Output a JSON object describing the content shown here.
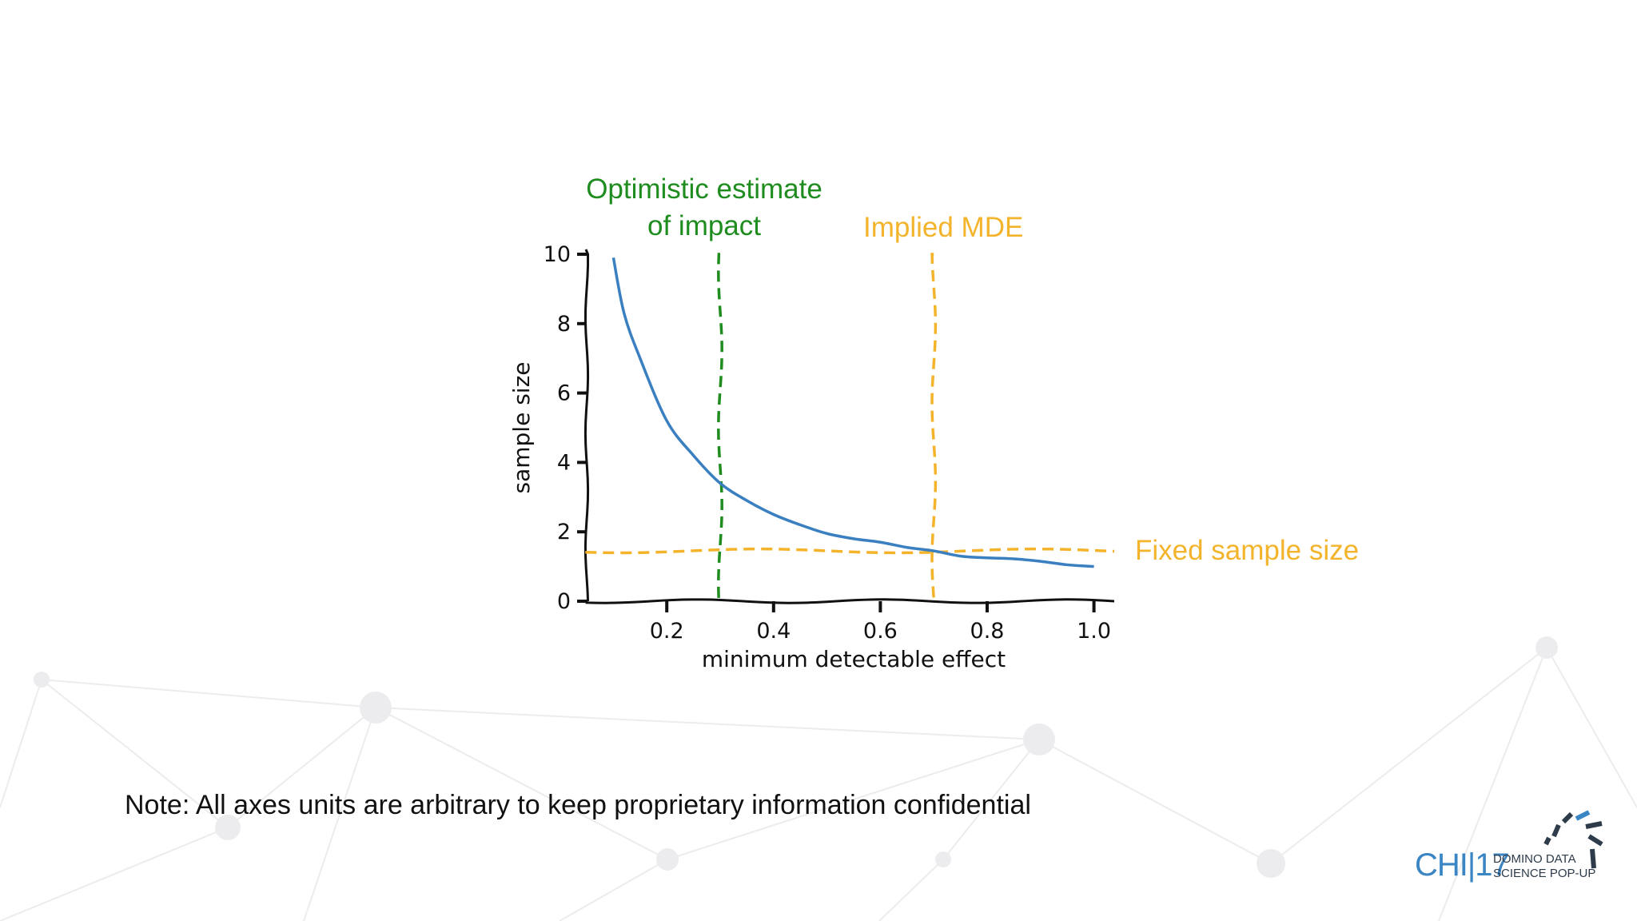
{
  "annotations": {
    "optimistic_line1": "Optimistic estimate",
    "optimistic_line2": "of impact",
    "implied_mde": "Implied MDE",
    "fixed_sample_size": "Fixed sample size"
  },
  "note": "Note: All axes units are arbitrary to keep proprietary information confidential",
  "logo": {
    "chi": "CHI|17",
    "line1": "DOMINO DATA",
    "line2": "SCIENCE POP-UP"
  },
  "colors": {
    "curve": "#3a7fc0",
    "optimistic": "#1e8c1e",
    "mde": "#f3b32b",
    "axis": "#111111",
    "logo_accent": "#3a86c4"
  },
  "chart_data": {
    "type": "line",
    "xlabel": "minimum detectable effect",
    "ylabel": "sample size",
    "xlim": [
      0.05,
      1.05
    ],
    "ylim": [
      0,
      10
    ],
    "xticks": [
      0.2,
      0.4,
      0.6,
      0.8,
      1.0
    ],
    "xtick_labels": [
      "0.2",
      "0.4",
      "0.6",
      "0.8",
      "1.0"
    ],
    "yticks": [
      0,
      2,
      4,
      6,
      8,
      10
    ],
    "ytick_labels": [
      "0",
      "2",
      "4",
      "6",
      "8",
      "10"
    ],
    "grid": false,
    "series": [
      {
        "x": [
          0.1,
          0.12,
          0.15,
          0.2,
          0.25,
          0.3,
          0.35,
          0.4,
          0.45,
          0.5,
          0.55,
          0.6,
          0.65,
          0.7,
          0.75,
          0.8,
          0.85,
          0.9,
          0.95,
          1.0
        ],
        "y": [
          9.9,
          8.3,
          7.0,
          5.2,
          4.2,
          3.4,
          2.9,
          2.5,
          2.2,
          1.95,
          1.8,
          1.7,
          1.55,
          1.45,
          1.3,
          1.25,
          1.22,
          1.15,
          1.05,
          1.0
        ]
      }
    ],
    "vlines": [
      {
        "x": 0.3,
        "color": "#1e8c1e",
        "style": "dashed"
      },
      {
        "x": 0.7,
        "color": "#f3b32b",
        "style": "dashed"
      }
    ],
    "hlines": [
      {
        "y": 1.45,
        "color": "#f3b32b",
        "style": "dashed"
      }
    ]
  }
}
